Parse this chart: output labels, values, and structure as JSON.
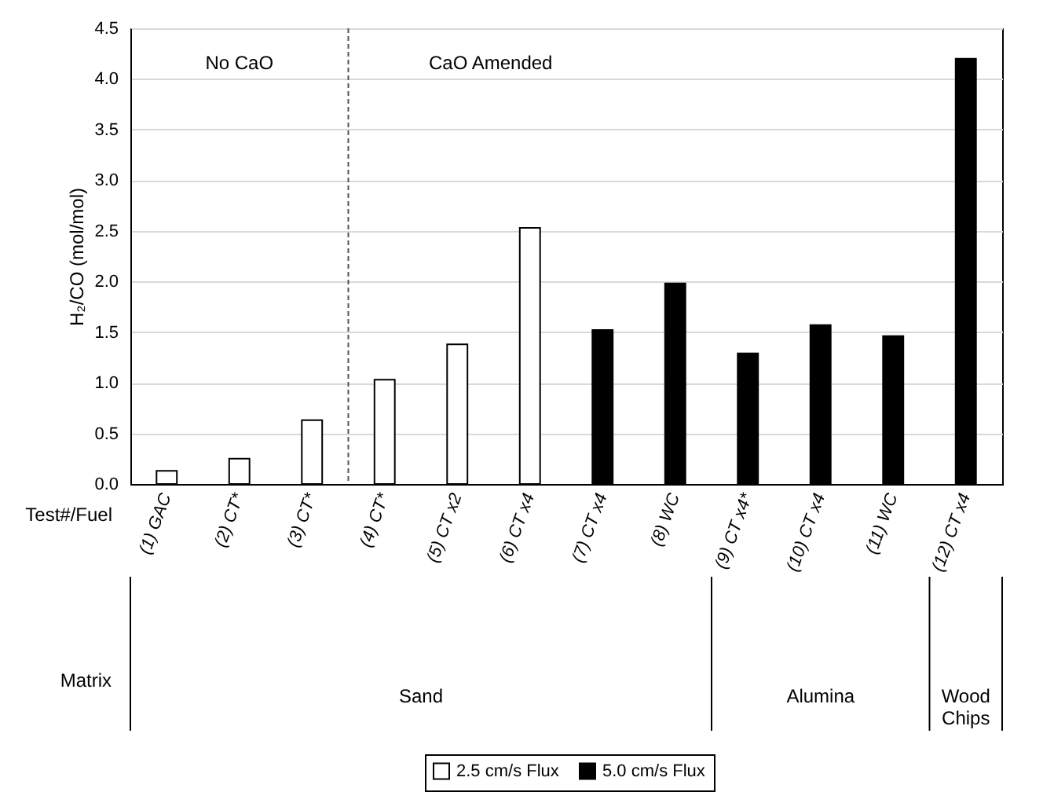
{
  "chart_data": {
    "type": "bar",
    "ylabel": "H₂/CO (mol/mol)",
    "xlabel": "Test#/Fuel",
    "categories": [
      "(1) GAC",
      "(2) CT*",
      "(3) CT*",
      "(4) CT*",
      "(5) CT x2",
      "(6) CT x4",
      "(7) CT x4",
      "(8) WC",
      "(9) CT x4*",
      "(10) CT x4",
      "(11) WC",
      "(12) CT x4"
    ],
    "series": [
      {
        "name": "2.5 cm/s Flux",
        "color": "#ffffff",
        "values": [
          0.13,
          0.25,
          0.63,
          1.03,
          1.38,
          2.53,
          null,
          null,
          null,
          null,
          null,
          null
        ]
      },
      {
        "name": "5.0 cm/s Flux",
        "color": "#000000",
        "values": [
          null,
          null,
          null,
          null,
          null,
          null,
          1.52,
          1.98,
          1.29,
          1.57,
          1.46,
          4.2
        ]
      }
    ],
    "ylim": [
      0,
      4.5
    ],
    "yticks": [
      {
        "value": 0,
        "label": "0.0"
      },
      {
        "value": 0.5,
        "label": "0.5"
      },
      {
        "value": 1,
        "label": "1.0"
      },
      {
        "value": 1.5,
        "label": "1.5"
      },
      {
        "value": 2,
        "label": "2.0"
      },
      {
        "value": 2.5,
        "label": "2.5"
      },
      {
        "value": 3,
        "label": "3.0"
      },
      {
        "value": 3.5,
        "label": "3.5"
      },
      {
        "value": 4,
        "label": "4.0"
      },
      {
        "value": 4.5,
        "label": "4.5"
      }
    ],
    "ref_lines": [
      {
        "axis": "x",
        "value": "(4) CT*",
        "line_style": "dashed",
        "color": "#555555"
      }
    ],
    "annotations": [
      "No CaO",
      "CaO Amended",
      "Matrix",
      "Sand",
      "Alumina",
      "Wood Chips"
    ],
    "grid": "y",
    "legend": "bottom"
  }
}
